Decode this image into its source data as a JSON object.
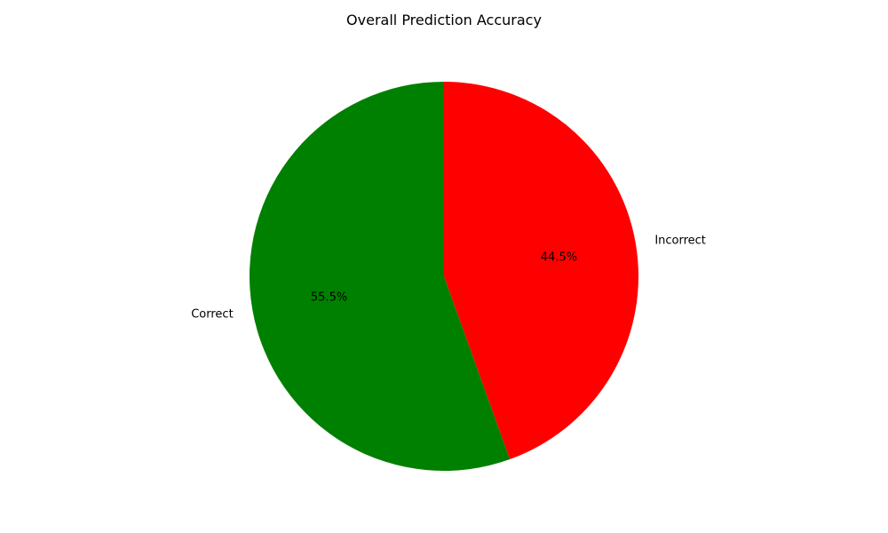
{
  "chart_data": {
    "type": "pie",
    "title": "Overall Prediction Accuracy",
    "slices": [
      {
        "label": "Correct",
        "value": 55.5,
        "pct_label": "55.5%",
        "color": "#008000"
      },
      {
        "label": "Incorrect",
        "value": 44.5,
        "pct_label": "44.5%",
        "color": "#ff0000"
      }
    ],
    "start_angle_deg": 90,
    "direction": "counterclockwise"
  }
}
